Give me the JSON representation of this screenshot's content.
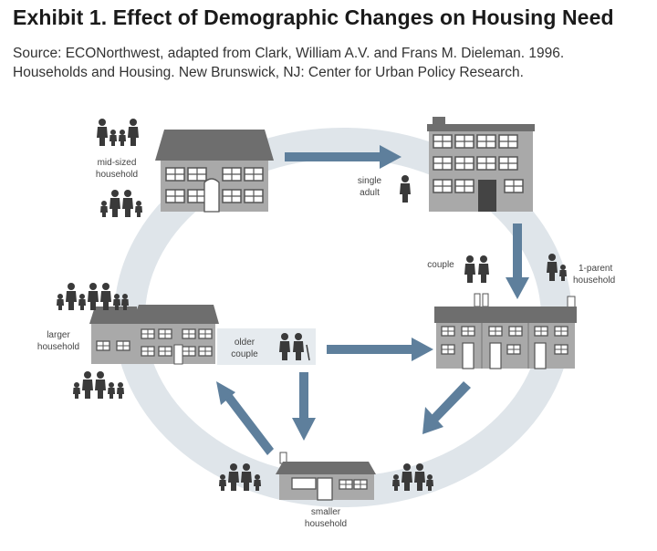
{
  "exhibit_title": "Exhibit 1. Effect of Demographic Changes on Housing Need",
  "source_text": "Source: ECONorthwest, adapted from Clark, William A.V. and Frans M. Dieleman. 1996. Households and Housing. New Brunswick, NJ: Center for Urban Policy Research.",
  "labels": {
    "mid_sized": [
      "mid-sized",
      "household"
    ],
    "single_adult": [
      "single",
      "adult"
    ],
    "couple": "couple",
    "one_parent": [
      "1-parent",
      "household"
    ],
    "larger": [
      "larger",
      "household"
    ],
    "older_couple": [
      "older",
      "couple"
    ],
    "smaller": [
      "smaller",
      "household"
    ]
  },
  "colors": {
    "ring": "#dfe5ea",
    "arrow": "#5e7f9c",
    "building": "#a9a9a9",
    "roof": "#6e6e6e",
    "person": "#3a3a3a",
    "text": "#444444"
  }
}
